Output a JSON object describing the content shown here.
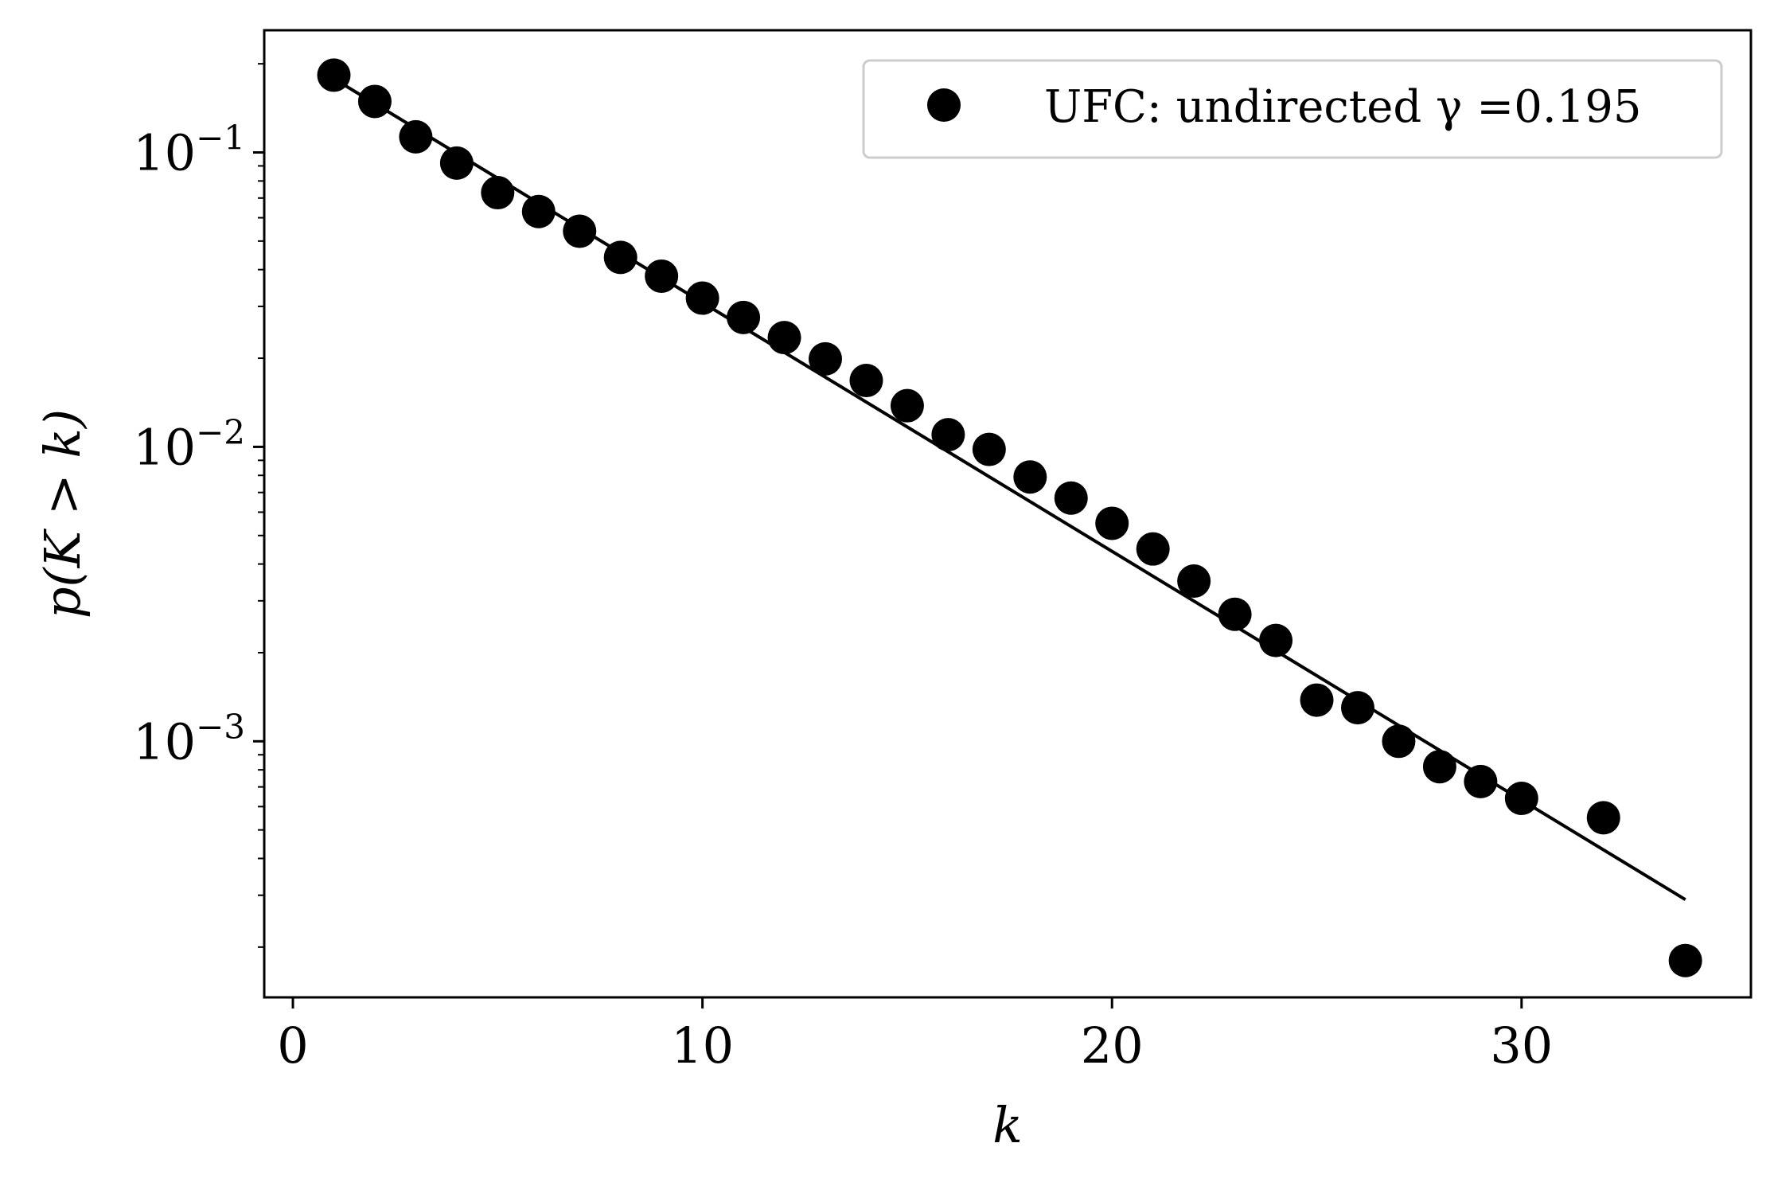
{
  "chart_data": {
    "type": "scatter",
    "xlabel": "k",
    "ylabel": "p(K > k)",
    "xlim": [
      -0.7,
      35.6
    ],
    "ylim": [
      0.000135,
      0.26
    ],
    "yscale": "log",
    "grid": false,
    "legend_position": "top-right",
    "x_ticks": [
      {
        "value": 0,
        "label": "0"
      },
      {
        "value": 10,
        "label": "10"
      },
      {
        "value": 20,
        "label": "20"
      },
      {
        "value": 30,
        "label": "30"
      }
    ],
    "y_ticks": [
      {
        "value": 0.1,
        "base": "10",
        "exp": "−1"
      },
      {
        "value": 0.01,
        "base": "10",
        "exp": "−2"
      },
      {
        "value": 0.001,
        "base": "10",
        "exp": "−3"
      }
    ],
    "series": [
      {
        "name": "UFC: undirected γ =0.195",
        "kind": "points",
        "color": "#000000",
        "x": [
          1,
          2,
          3,
          4,
          5,
          6,
          7,
          8,
          9,
          10,
          11,
          12,
          13,
          14,
          15,
          16,
          17,
          18,
          19,
          20,
          21,
          22,
          23,
          24,
          25,
          26,
          27,
          28,
          29,
          30,
          32,
          34
        ],
        "y": [
          0.183,
          0.149,
          0.113,
          0.092,
          0.073,
          0.063,
          0.054,
          0.044,
          0.038,
          0.032,
          0.0275,
          0.0235,
          0.0199,
          0.0168,
          0.0138,
          0.011,
          0.0098,
          0.0079,
          0.0067,
          0.0055,
          0.0045,
          0.0035,
          0.0027,
          0.0022,
          0.00138,
          0.0013,
          0.001,
          0.00082,
          0.00073,
          0.00064,
          0.00055,
          0.00018
        ]
      },
      {
        "kind": "fit-line",
        "color": "#000000",
        "x": [
          1,
          34
        ],
        "y": [
          0.178,
          0.00029
        ]
      }
    ]
  }
}
